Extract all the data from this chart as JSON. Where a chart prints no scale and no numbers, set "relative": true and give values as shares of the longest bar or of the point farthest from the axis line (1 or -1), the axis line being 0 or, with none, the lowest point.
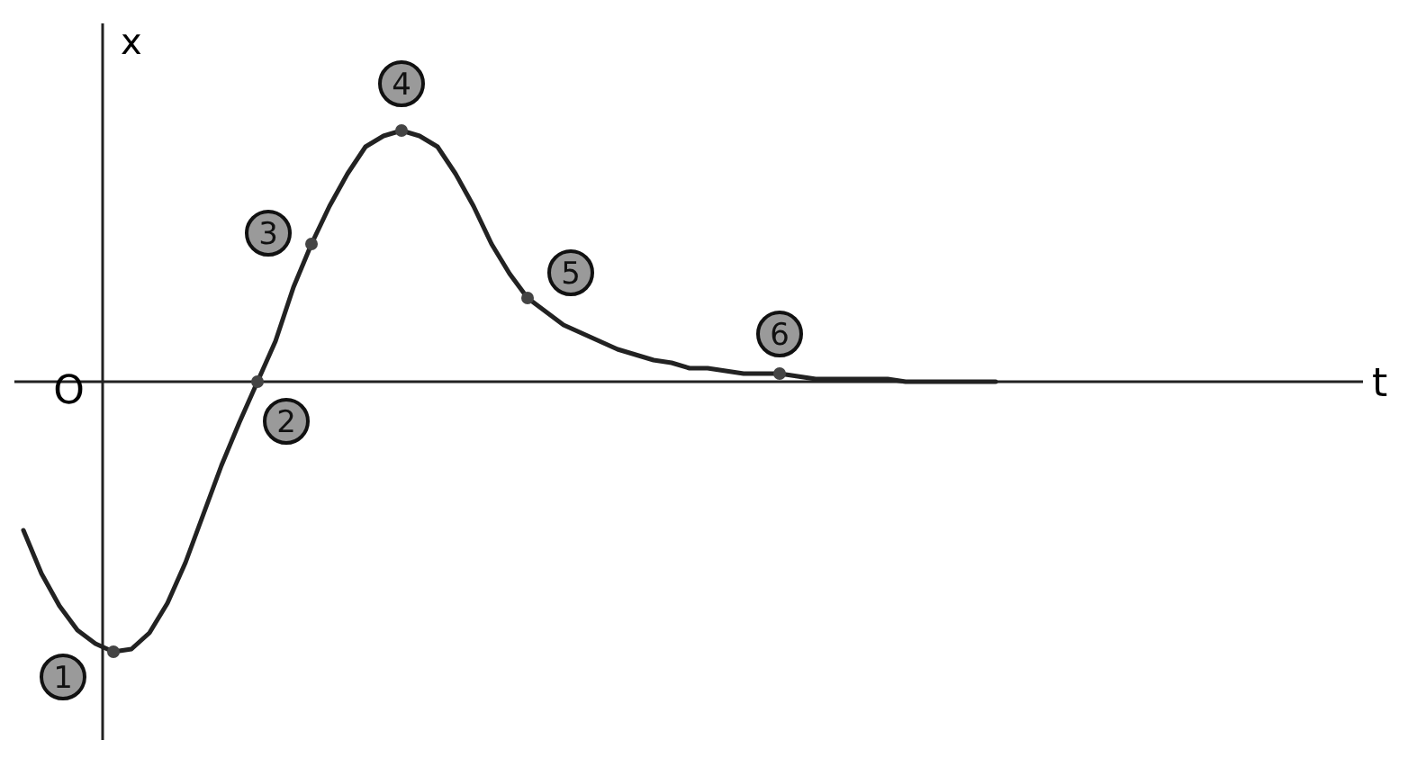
{
  "chart_data": {
    "type": "line",
    "relative": true,
    "ylabel": "x",
    "annotations": [
      "O",
      "t",
      "1",
      "2",
      "3",
      "4",
      "5",
      "6"
    ],
    "categories": [
      null,
      null,
      null,
      null,
      null,
      null,
      null,
      null,
      null,
      null,
      null,
      null,
      null,
      null,
      null,
      null,
      null,
      null,
      null,
      null,
      null,
      null,
      null,
      null,
      null,
      null,
      null,
      null,
      null,
      null,
      null,
      null,
      null,
      null,
      null,
      null,
      null,
      null,
      null,
      null,
      null,
      null,
      null,
      null,
      null,
      null,
      null,
      null,
      null,
      null,
      null,
      null,
      null,
      null,
      null
    ],
    "series": [
      {
        "color": "#222222",
        "values": [
          -0.55,
          -0.71,
          -0.83,
          -0.92,
          -0.97,
          -1,
          -0.99,
          -0.93,
          -0.82,
          -0.67,
          -0.49,
          -0.31,
          -0.15,
          0,
          0.15,
          0.35,
          0.51,
          0.65,
          0.77,
          0.87,
          0.91,
          0.93,
          0.91,
          0.87,
          0.77,
          0.65,
          0.51,
          0.4,
          0.31,
          0.26,
          0.21,
          0.18,
          0.15,
          0.12,
          0.1,
          0.08,
          0.07,
          0.05,
          0.05,
          0.04,
          0.03,
          0.03,
          0.03,
          0.02,
          0.01,
          0.01,
          0.01,
          0.01,
          0.01,
          0,
          0,
          0,
          0,
          0,
          0
        ]
      }
    ]
  }
}
